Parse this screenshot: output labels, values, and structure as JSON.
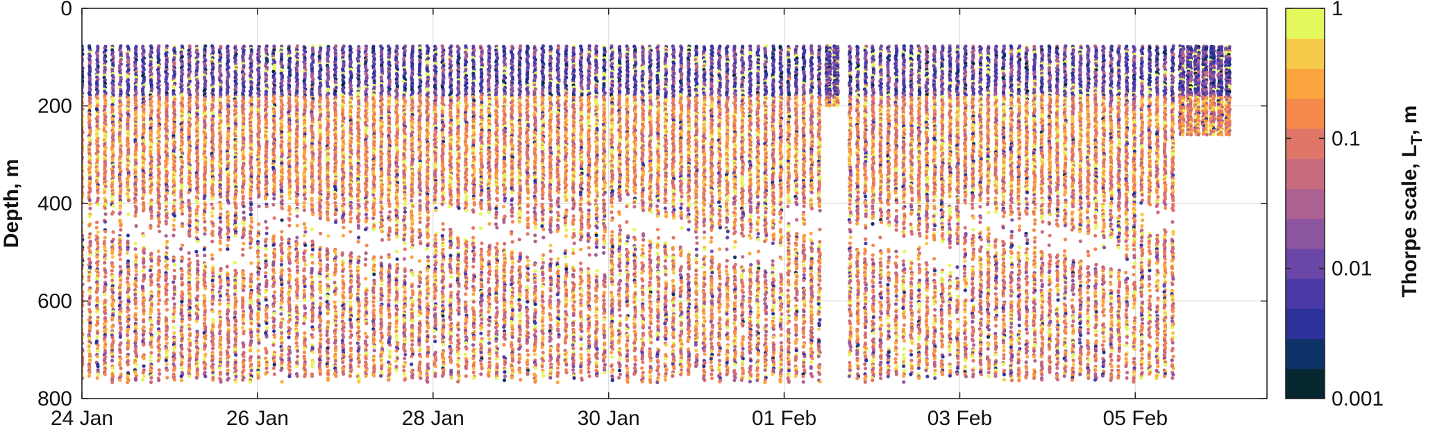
{
  "chart_data": {
    "type": "scatter",
    "title": "",
    "xlabel": "",
    "ylabel": "Depth, m",
    "x_ticks": [
      "24 Jan",
      "26 Jan",
      "28 Jan",
      "30 Jan",
      "01 Feb",
      "03 Feb",
      "05 Feb"
    ],
    "x_tick_dates": [
      "2000-01-24",
      "2000-01-26",
      "2000-01-28",
      "2000-01-30",
      "2000-02-01",
      "2000-02-03",
      "2000-02-05"
    ],
    "xlim": [
      "2000-01-24",
      "2000-02-06T12:00"
    ],
    "y_ticks": [
      0,
      200,
      400,
      600,
      800
    ],
    "ylim": [
      0,
      800
    ],
    "y_reversed": true,
    "grid": true,
    "colorbar": {
      "label_main": "Thorpe scale, L",
      "label_sub": "T",
      "label_tail": ", m",
      "scale": "log",
      "range": [
        0.001,
        1
      ],
      "tick_labels": [
        "1",
        "0.1",
        "0.01",
        "0.001"
      ],
      "tick_values": [
        1,
        0.1,
        0.01,
        0.001
      ],
      "colors": [
        "#062630",
        "#0e3368",
        "#2c3299",
        "#4a3aa8",
        "#6a46a6",
        "#8c55a0",
        "#ad6192",
        "#c86a7e",
        "#e07668",
        "#f58a4c",
        "#fba63e",
        "#f6ca4a",
        "#e4f75b"
      ]
    },
    "profiles": {
      "cadence_hours": 2.1,
      "start": "2000-01-24",
      "count": 150,
      "top_depth_m": 78,
      "bottom_depth_m": [
        750,
        770
      ],
      "sample_spacing_m": 4,
      "gaps": [
        [
          "2000-02-01T15:30",
          "2000-02-01T17:00"
        ]
      ],
      "dense_segment": [
        "2000-02-01T10:00",
        "2000-02-01T16:00"
      ],
      "dense_segment_bottom_m": 200,
      "late_bottom_m": 260
    },
    "upper_layer": {
      "depth_range_m": [
        78,
        180
      ],
      "typical_LT_m": [
        0.003,
        0.03
      ]
    },
    "middle_layer": {
      "depth_range_m": [
        180,
        380
      ],
      "typical_LT_m": [
        0.05,
        0.6
      ]
    },
    "quiet_band": {
      "depth_m_start": 400,
      "depth_m_end": 560
    }
  }
}
